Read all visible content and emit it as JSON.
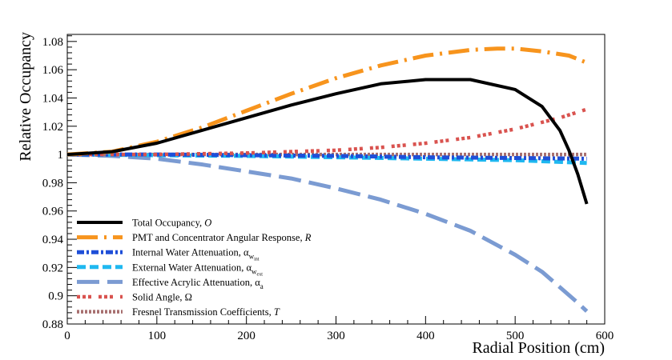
{
  "chart_data": {
    "type": "line",
    "title": "",
    "xlabel": "Radial Position (cm)",
    "ylabel": "Relative Occupancy",
    "xlim": [
      0,
      600
    ],
    "ylim": [
      0.88,
      1.085
    ],
    "xticks": [
      0,
      100,
      200,
      300,
      400,
      500,
      600
    ],
    "xtick_labels": [
      "0",
      "100",
      "200",
      "300",
      "400",
      "500",
      "600"
    ],
    "yticks": [
      0.88,
      0.9,
      0.92,
      0.94,
      0.96,
      0.98,
      1.0,
      1.02,
      1.04,
      1.06,
      1.08
    ],
    "ytick_labels": [
      "0.88",
      "0.9",
      "0.92",
      "0.94",
      "0.96",
      "0.98",
      "1",
      "1.02",
      "1.04",
      "1.06",
      "1.08"
    ],
    "grid": false,
    "legend_position": "bottom-left",
    "series": [
      {
        "name": "Total Occupancy, O",
        "label_text": "Total Occupancy, ",
        "symbol": "O",
        "color": "#000000",
        "x": [
          0,
          50,
          100,
          150,
          200,
          250,
          300,
          350,
          400,
          450,
          500,
          530,
          550,
          560,
          570,
          580
        ],
        "values": [
          1.0,
          1.002,
          1.008,
          1.017,
          1.026,
          1.035,
          1.043,
          1.05,
          1.053,
          1.053,
          1.046,
          1.034,
          1.017,
          1.003,
          0.986,
          0.965
        ]
      },
      {
        "name": "PMT and Concentrator Angular Response, R",
        "label_text": "PMT and Concentrator Angular Response, ",
        "symbol": "R",
        "color": "#f7941d",
        "x": [
          0,
          50,
          100,
          150,
          200,
          250,
          300,
          350,
          400,
          450,
          480,
          500,
          530,
          560,
          580
        ],
        "values": [
          1.0,
          1.002,
          1.009,
          1.019,
          1.031,
          1.043,
          1.054,
          1.063,
          1.07,
          1.074,
          1.075,
          1.075,
          1.073,
          1.07,
          1.065
        ]
      },
      {
        "name": "Internal Water Attenuation, α_w_int",
        "label_text": "Internal Water Attenuation, ",
        "symbol": "α",
        "subscript": "w",
        "subsubscript": "int",
        "color": "#1f4fd8",
        "x": [
          0,
          100,
          200,
          300,
          400,
          500,
          580
        ],
        "values": [
          1.0,
          1.0,
          0.9995,
          0.999,
          0.998,
          0.9975,
          0.997
        ]
      },
      {
        "name": "External Water Attenuation, α_w_ext",
        "label_text": "External Water Attenuation, ",
        "symbol": "α",
        "subscript": "w",
        "subsubscript": "ext",
        "color": "#1fb8f0",
        "x": [
          0,
          100,
          200,
          300,
          400,
          500,
          580
        ],
        "values": [
          1.0,
          0.9995,
          0.999,
          0.998,
          0.997,
          0.996,
          0.994
        ]
      },
      {
        "name": "Effective Acrylic Attenuation, α_a",
        "label_text": "Effective Acrylic Attenuation, ",
        "symbol": "α",
        "subscript": "a",
        "color": "#7b9bd2",
        "x": [
          0,
          50,
          100,
          150,
          200,
          250,
          300,
          350,
          400,
          450,
          500,
          530,
          550,
          570,
          580
        ],
        "values": [
          1.0,
          0.999,
          0.997,
          0.993,
          0.988,
          0.983,
          0.976,
          0.968,
          0.958,
          0.946,
          0.929,
          0.917,
          0.906,
          0.895,
          0.889
        ]
      },
      {
        "name": "Solid Angle, Ω",
        "label_text": "Solid Angle, ",
        "symbol": "Ω",
        "color": "#d9534f",
        "x": [
          0,
          100,
          200,
          300,
          350,
          400,
          450,
          500,
          550,
          580
        ],
        "values": [
          1.0,
          1.0,
          1.001,
          1.003,
          1.005,
          1.008,
          1.012,
          1.018,
          1.026,
          1.032
        ]
      },
      {
        "name": "Fresnel Transmission Coefficients, T",
        "label_text": "Fresnel Transmission Coefficients, ",
        "symbol": "T",
        "color": "#a87070",
        "x": [
          0,
          100,
          200,
          300,
          400,
          500,
          580
        ],
        "values": [
          1.0,
          1.0,
          1.0,
          1.0,
          1.0,
          1.0,
          1.0
        ]
      }
    ]
  }
}
